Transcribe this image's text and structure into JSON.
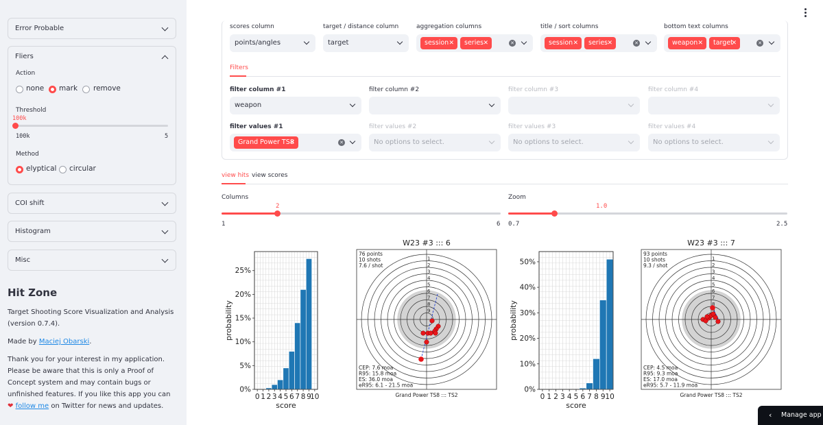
{
  "sidebar": {
    "error_probable": "Error Probable",
    "fliers": {
      "title": "Fliers",
      "action_label": "Action",
      "action_options": [
        "none",
        "mark",
        "remove"
      ],
      "action_selected": "mark",
      "threshold_label": "Threshold",
      "threshold_value": "100k",
      "threshold_min": "100k",
      "threshold_max": "5",
      "method_label": "Method",
      "method_options": [
        "elyptical",
        "circular"
      ],
      "method_selected": "elyptical"
    },
    "coi_shift": "COI shift",
    "histogram": "Histogram",
    "misc": "Misc",
    "about": {
      "title": "Hit Zone",
      "description": "Target Shooting Score Visualization and Analysis (version 0.7.4).",
      "made_by_prefix": "Made by ",
      "author": "Maciej Obarski",
      "made_by_suffix": ".",
      "thanks": "Thank you for your interest in my application. Please be aware that this is only a Proof of Concept system and may contain bugs or unfinished features. If you like this app you can",
      "follow_link": "follow me",
      "thanks_suffix": "on Twitter for news and updates."
    }
  },
  "columns": {
    "scores": {
      "label": "scores column",
      "value": "points/angles"
    },
    "target": {
      "label": "target / distance column",
      "value": "target"
    },
    "aggregation": {
      "label": "aggregation columns",
      "tags": [
        "session",
        "series"
      ]
    },
    "title_sort": {
      "label": "title / sort columns",
      "tags": [
        "session",
        "series"
      ]
    },
    "bottom_text": {
      "label": "bottom text columns",
      "tags": [
        "weapon",
        "target"
      ]
    }
  },
  "filters_tab": "Filters",
  "filters": {
    "columns": [
      {
        "label": "filter column #1",
        "value": "weapon"
      },
      {
        "label": "filter column #2",
        "value": ""
      },
      {
        "label": "filter column #3",
        "value": ""
      },
      {
        "label": "filter column #4",
        "value": ""
      }
    ],
    "values": [
      {
        "label": "filter values #1",
        "tag": "Grand Power TS8"
      },
      {
        "label": "filter values #2",
        "placeholder": "No options to select."
      },
      {
        "label": "filter values #3",
        "placeholder": "No options to select."
      },
      {
        "label": "filter values #4",
        "placeholder": "No options to select."
      }
    ]
  },
  "view_tabs": [
    "view hits",
    "view scores"
  ],
  "columns_slider": {
    "label": "Columns",
    "value": "2",
    "min": "1",
    "max": "6",
    "fraction": 0.2
  },
  "zoom_slider": {
    "label": "Zoom",
    "value": "1.0",
    "min": "0.7",
    "max": "2.5",
    "fraction": 0.1667
  },
  "manage_app": "Manage app",
  "colors": {
    "accent": "#ff4b4b",
    "bar": "#1f77b4",
    "sidebar": "#f0f2f6"
  },
  "chart_data": [
    {
      "type": "bar",
      "categories": [
        "0",
        "1",
        "2",
        "3",
        "4",
        "5",
        "6",
        "7",
        "8",
        "9",
        "10"
      ],
      "values": [
        0,
        0,
        0.3,
        1.0,
        2.0,
        4.5,
        8.0,
        14.0,
        21.0,
        27.5,
        0
      ],
      "xlabel": "score",
      "ylabel": "probability",
      "yticks": [
        "0%",
        "5%",
        "10%",
        "15%",
        "20%",
        "25%"
      ],
      "ylim": [
        0,
        29
      ],
      "grid": true
    },
    {
      "type": "scatter",
      "title": "W23 #3 ::: 6",
      "stats_top": [
        "76 points",
        "10 shots",
        "7.6 / shot"
      ],
      "stats_bottom": [
        "CEP: 7.6 moa",
        "R95: 15.8 moa",
        "ES: 36.0 moa",
        "eR95: 6.1 - 21.5 moa"
      ],
      "footer": "Grand Power TS8 ::: TS2",
      "ring_labels": [
        "1",
        "2",
        "3",
        "4",
        "5",
        "6",
        "7",
        "8",
        "9"
      ],
      "hits": [
        [
          8,
          -2
        ],
        [
          17,
          -10
        ],
        [
          14,
          -14
        ],
        [
          12,
          -17
        ],
        [
          13,
          -20
        ],
        [
          2,
          -20
        ],
        [
          -5,
          -20
        ],
        [
          6,
          -20
        ],
        [
          0,
          -33
        ],
        [
          -8,
          -58
        ]
      ],
      "flier": [
        -8,
        -58
      ]
    },
    {
      "type": "bar",
      "categories": [
        "0",
        "1",
        "2",
        "3",
        "4",
        "5",
        "6",
        "7",
        "8",
        "9",
        "10"
      ],
      "values": [
        0,
        0,
        0,
        0,
        0,
        0,
        0.5,
        2.5,
        12.0,
        35.0,
        51.0
      ],
      "xlabel": "score",
      "ylabel": "probability",
      "yticks": [
        "0%",
        "10%",
        "20%",
        "30%",
        "40%",
        "50%"
      ],
      "ylim": [
        0,
        54
      ],
      "grid": true
    },
    {
      "type": "scatter",
      "title": "W23 #3 ::: 7",
      "stats_top": [
        "93 points",
        "10 shots",
        "9.3 / shot"
      ],
      "stats_bottom": [
        "CEP: 4.5 moa",
        "R95: 9.3 moa",
        "ES: 17.0 moa",
        "eR95: 5.7 - 11.9 moa"
      ],
      "footer": "Grand Power TS8 ::: TS2",
      "ring_labels": [
        "1",
        "2",
        "3",
        "4",
        "5",
        "6",
        "7",
        "8",
        "9"
      ],
      "hits": [
        [
          -12,
          0
        ],
        [
          -8,
          -2
        ],
        [
          -4,
          2
        ],
        [
          -2,
          4
        ],
        [
          0,
          6
        ],
        [
          3,
          8
        ],
        [
          -6,
          4
        ],
        [
          6,
          3
        ],
        [
          10,
          -3
        ],
        [
          2,
          17
        ]
      ],
      "flier": [
        2,
        17
      ]
    }
  ]
}
